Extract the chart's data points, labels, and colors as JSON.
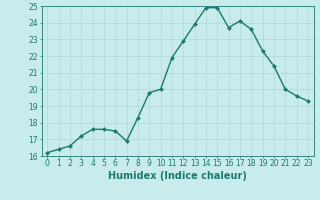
{
  "x": [
    0,
    1,
    2,
    3,
    4,
    5,
    6,
    7,
    8,
    9,
    10,
    11,
    12,
    13,
    14,
    15,
    16,
    17,
    18,
    19,
    20,
    21,
    22,
    23
  ],
  "y": [
    16.2,
    16.4,
    16.6,
    17.2,
    17.6,
    17.6,
    17.5,
    16.9,
    18.3,
    19.8,
    20.0,
    21.9,
    22.9,
    23.9,
    24.9,
    24.9,
    23.7,
    24.1,
    23.6,
    22.3,
    21.4,
    20.0,
    19.6,
    19.3
  ],
  "line_color": "#1a7a6e",
  "bg_color": "#c8ebeb",
  "grid_color": "#b0d8d8",
  "xlabel": "Humidex (Indice chaleur)",
  "ylim": [
    16,
    25
  ],
  "xlim_min": -0.5,
  "xlim_max": 23.5,
  "yticks": [
    16,
    17,
    18,
    19,
    20,
    21,
    22,
    23,
    24,
    25
  ],
  "xticks": [
    0,
    1,
    2,
    3,
    4,
    5,
    6,
    7,
    8,
    9,
    10,
    11,
    12,
    13,
    14,
    15,
    16,
    17,
    18,
    19,
    20,
    21,
    22,
    23
  ],
  "marker": "D",
  "marker_size": 2.0,
  "linewidth": 1.0,
  "label_fontsize": 7.0,
  "tick_fontsize": 5.5
}
